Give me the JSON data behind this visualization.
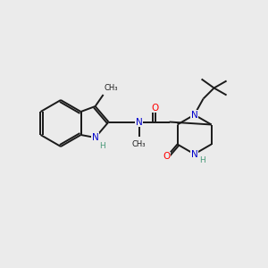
{
  "background_color": "#ebebeb",
  "bond_color": "#1a1a1a",
  "atom_colors": {
    "N": "#0000cc",
    "O": "#ff0000",
    "C": "#1a1a1a",
    "H": "#4a9a7a"
  },
  "figsize": [
    3.0,
    3.0
  ],
  "dpi": 100,
  "scale": 1.0
}
